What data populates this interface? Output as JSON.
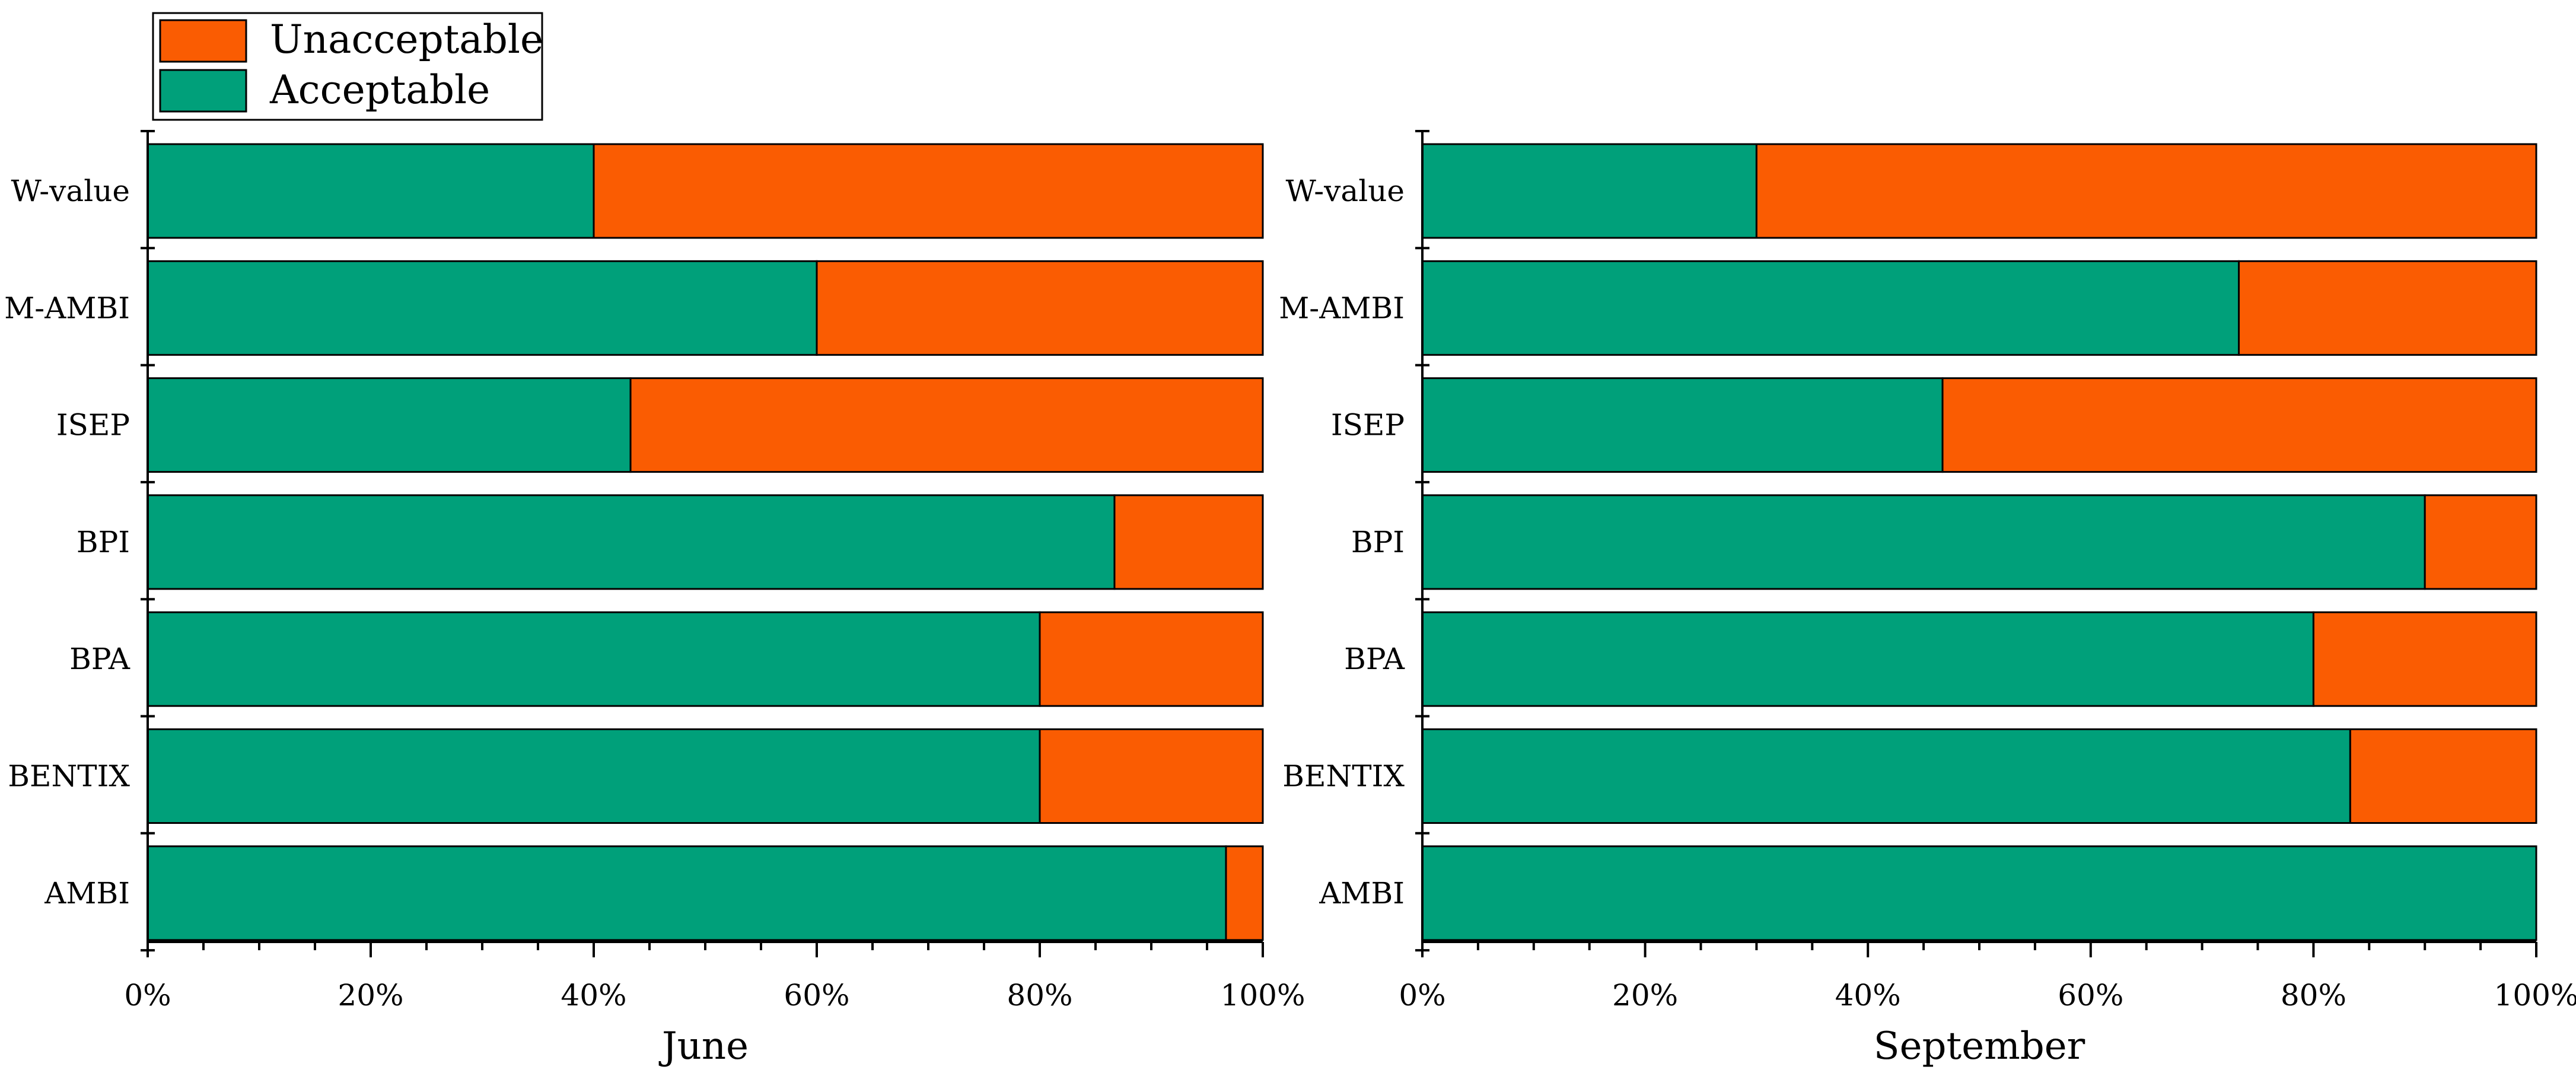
{
  "chart_data": {
    "type": "bar",
    "orientation": "horizontal",
    "stacked": true,
    "percent_stacked": true,
    "categories": [
      "W-value",
      "M-AMBI",
      "ISEP",
      "BPI",
      "BPA",
      "BENTIX",
      "AMBI"
    ],
    "x_tick_labels": [
      "0%",
      "20%",
      "40%",
      "60%",
      "80%",
      "100%"
    ],
    "xlim": [
      0,
      100
    ],
    "grid": false,
    "legend_position": "top-left",
    "legend": [
      {
        "name": "Unacceptable",
        "color": "#FA5C02"
      },
      {
        "name": "Acceptable",
        "color": "#00A07A"
      }
    ],
    "panels": [
      {
        "title": "June",
        "series": [
          {
            "name": "Acceptable",
            "values": [
              40,
              60,
              43.3,
              86.7,
              80,
              80,
              96.7
            ]
          },
          {
            "name": "Unacceptable",
            "values": [
              60,
              40,
              56.7,
              13.3,
              20,
              20,
              3.3
            ]
          }
        ]
      },
      {
        "title": "September",
        "series": [
          {
            "name": "Acceptable",
            "values": [
              30,
              73.3,
              46.7,
              90,
              80,
              83.3,
              100
            ]
          },
          {
            "name": "Unacceptable",
            "values": [
              70,
              26.7,
              53.3,
              10,
              20,
              16.7,
              0
            ]
          }
        ]
      }
    ],
    "colors": {
      "acceptable": "#00A07A",
      "unacceptable": "#FA5C02",
      "stroke": "#000000"
    }
  }
}
